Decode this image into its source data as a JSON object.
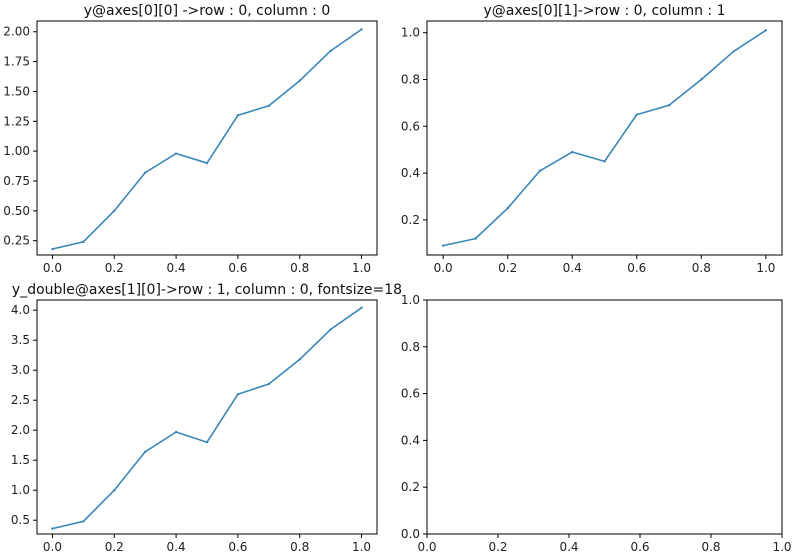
{
  "figure": {
    "background": "#ffffff",
    "line_color": "#3a86b6"
  },
  "chart_data": [
    {
      "type": "line",
      "title": "y@axes[0][0] ->row : 0, column : 0",
      "xlabel": "",
      "ylabel": "",
      "xlim": [
        -0.05,
        1.05
      ],
      "ylim": [
        0.13,
        2.09
      ],
      "xticks": [
        "0.0",
        "0.2",
        "0.4",
        "0.6",
        "0.8",
        "1.0"
      ],
      "yticks": [
        "0.25",
        "0.50",
        "0.75",
        "1.00",
        "1.25",
        "1.50",
        "1.75",
        "2.00"
      ],
      "grid": false,
      "x": [
        0.0,
        0.1,
        0.2,
        0.3,
        0.4,
        0.5,
        0.6,
        0.7,
        0.8,
        0.9,
        1.0
      ],
      "series": [
        {
          "values": [
            0.18,
            0.24,
            0.5,
            0.82,
            0.98,
            0.9,
            1.3,
            1.38,
            1.59,
            1.84,
            2.02
          ]
        }
      ]
    },
    {
      "type": "line",
      "title": "y@axes[0][1]->row : 0, column : 1",
      "xlabel": "",
      "ylabel": "",
      "xlim": [
        -0.05,
        1.05
      ],
      "ylim": [
        0.05,
        1.05
      ],
      "xticks": [
        "0.0",
        "0.2",
        "0.4",
        "0.6",
        "0.8",
        "1.0"
      ],
      "yticks": [
        "0.2",
        "0.4",
        "0.6",
        "0.8",
        "1.0"
      ],
      "grid": false,
      "x": [
        0.0,
        0.1,
        0.2,
        0.3,
        0.4,
        0.5,
        0.6,
        0.7,
        0.8,
        0.9,
        1.0
      ],
      "series": [
        {
          "values": [
            0.09,
            0.12,
            0.25,
            0.41,
            0.49,
            0.45,
            0.65,
            0.69,
            0.8,
            0.92,
            1.01
          ]
        }
      ]
    },
    {
      "type": "line",
      "title": "y_double@axes[1][0]->row : 1, column : 0, fontsize=18",
      "xlabel": "",
      "ylabel": "",
      "xlim": [
        -0.05,
        1.05
      ],
      "ylim": [
        0.27,
        4.17
      ],
      "xticks": [
        "0.0",
        "0.2",
        "0.4",
        "0.6",
        "0.8",
        "1.0"
      ],
      "yticks": [
        "0.5",
        "1.0",
        "1.5",
        "2.0",
        "2.5",
        "3.0",
        "3.5",
        "4.0"
      ],
      "grid": false,
      "x": [
        0.0,
        0.1,
        0.2,
        0.3,
        0.4,
        0.5,
        0.6,
        0.7,
        0.8,
        0.9,
        1.0
      ],
      "series": [
        {
          "values": [
            0.36,
            0.48,
            1.0,
            1.64,
            1.97,
            1.8,
            2.6,
            2.77,
            3.18,
            3.68,
            4.04
          ]
        }
      ]
    },
    {
      "type": "line",
      "title": "",
      "xlabel": "",
      "ylabel": "",
      "xlim": [
        0.0,
        1.0
      ],
      "ylim": [
        0.0,
        1.0
      ],
      "xticks": [
        "0.0",
        "0.2",
        "0.4",
        "0.6",
        "0.8",
        "1.0"
      ],
      "yticks": [
        "0.0",
        "0.2",
        "0.4",
        "0.6",
        "0.8",
        "1.0"
      ],
      "grid": false,
      "x": [],
      "series": []
    }
  ]
}
